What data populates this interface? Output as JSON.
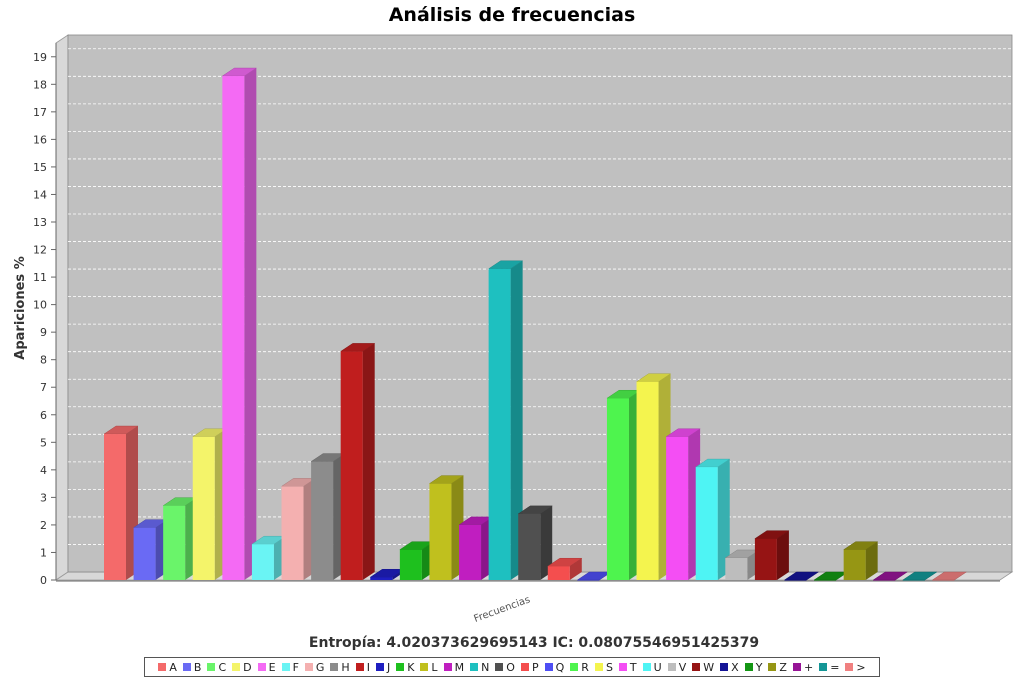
{
  "chart_data": {
    "type": "bar",
    "title": "Análisis de frecuencias",
    "ylabel": "Apariciones %",
    "category": "Frecuencias",
    "subtitle": "Entropía: 4.020373629695143  IC: 0.08075546951425379",
    "ylim": [
      0,
      19.5
    ],
    "yticks": [
      0,
      1,
      2,
      3,
      4,
      5,
      6,
      7,
      8,
      9,
      10,
      11,
      12,
      13,
      14,
      15,
      16,
      17,
      18,
      19
    ],
    "grid": true,
    "legend_position": "bottom",
    "series": [
      {
        "name": "A",
        "value": 5.3,
        "color": "#f46a6a"
      },
      {
        "name": "B",
        "value": 1.9,
        "color": "#6a6af4"
      },
      {
        "name": "C",
        "value": 2.7,
        "color": "#6af46a"
      },
      {
        "name": "D",
        "value": 5.2,
        "color": "#f4f46a"
      },
      {
        "name": "E",
        "value": 18.3,
        "color": "#f46af4"
      },
      {
        "name": "F",
        "value": 1.3,
        "color": "#6af4f4"
      },
      {
        "name": "G",
        "value": 3.4,
        "color": "#f4b0b0"
      },
      {
        "name": "H",
        "value": 4.3,
        "color": "#8c8c8c"
      },
      {
        "name": "I",
        "value": 8.3,
        "color": "#c01e1e"
      },
      {
        "name": "J",
        "value": 0.1,
        "color": "#1e1ec0"
      },
      {
        "name": "K",
        "value": 1.1,
        "color": "#1ec01e"
      },
      {
        "name": "L",
        "value": 3.5,
        "color": "#c0c01e"
      },
      {
        "name": "M",
        "value": 2.0,
        "color": "#c01ec0"
      },
      {
        "name": "N",
        "value": 11.3,
        "color": "#1ec0c0"
      },
      {
        "name": "O",
        "value": 2.4,
        "color": "#505050"
      },
      {
        "name": "P",
        "value": 0.5,
        "color": "#f44e4e"
      },
      {
        "name": "Q",
        "value": 0.0,
        "color": "#4e4ef4"
      },
      {
        "name": "R",
        "value": 6.6,
        "color": "#4ef44e"
      },
      {
        "name": "S",
        "value": 7.2,
        "color": "#f4f44e"
      },
      {
        "name": "T",
        "value": 5.2,
        "color": "#f44ef4"
      },
      {
        "name": "U",
        "value": 4.1,
        "color": "#4ef4f4"
      },
      {
        "name": "V",
        "value": 0.8,
        "color": "#bdbdbd"
      },
      {
        "name": "W",
        "value": 1.5,
        "color": "#961414"
      },
      {
        "name": "X",
        "value": 0.0,
        "color": "#141496"
      },
      {
        "name": "Y",
        "value": 0.0,
        "color": "#149614"
      },
      {
        "name": "Z",
        "value": 1.1,
        "color": "#969614"
      },
      {
        "name": "+",
        "value": 0.0,
        "color": "#961496"
      },
      {
        "name": "=",
        "value": 0.0,
        "color": "#149696"
      },
      {
        "name": ">",
        "value": 0.0,
        "color": "#f08080"
      }
    ]
  }
}
